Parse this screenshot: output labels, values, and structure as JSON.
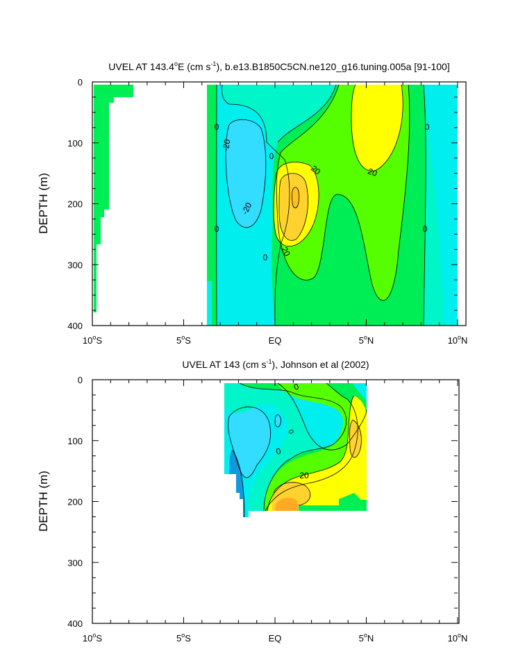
{
  "chart_data": [
    {
      "type": "contour",
      "title_prefix": "UVEL AT 143.4",
      "title_deg": "o",
      "title_mid": "E (cm s",
      "title_exp": "-1",
      "title_suffix": "), b.e13.B1850C5CN.ne120_g16.tuning.005a [91-100]",
      "ylabel": "DEPTH (m)",
      "xlim": [
        -10,
        10
      ],
      "ylim": [
        400,
        0
      ],
      "y_ticks": [
        "0",
        "100",
        "200",
        "300",
        "400"
      ],
      "x_ticks": [
        {
          "num": "10",
          "sup": "o",
          "suf": "S"
        },
        {
          "num": "5",
          "sup": "o",
          "suf": "S"
        },
        {
          "num": "EQ",
          "sup": "",
          "suf": ""
        },
        {
          "num": "5",
          "sup": "o",
          "suf": "N"
        },
        {
          "num": "10",
          "sup": "o",
          "suf": "N"
        }
      ],
      "contour_labels": [
        "0",
        "-20",
        "0",
        "20",
        "20",
        "-20",
        "0",
        "20",
        "0",
        "0",
        "0"
      ],
      "colors": {
        "cyan": "#00eeee",
        "lightblue": "#33ddff",
        "teal": "#00f5c8",
        "green": "#00ee55",
        "lime": "#55ff00",
        "yellow": "#ffff00",
        "gold": "#ffd22e"
      }
    },
    {
      "type": "contour",
      "title_prefix": "UVEL AT 143 (cm s",
      "title_exp": "-1",
      "title_suffix": "), Johnson et al (2002)",
      "ylabel": "DEPTH (m)",
      "xlim": [
        -10,
        10
      ],
      "ylim": [
        400,
        0
      ],
      "y_ticks": [
        "0",
        "100",
        "200",
        "300",
        "400"
      ],
      "x_ticks": [
        {
          "num": "10",
          "sup": "o",
          "suf": "S"
        },
        {
          "num": "5",
          "sup": "o",
          "suf": "S"
        },
        {
          "num": "EQ",
          "sup": "",
          "suf": ""
        },
        {
          "num": "5",
          "sup": "o",
          "suf": "N"
        },
        {
          "num": "10",
          "sup": "o",
          "suf": "N"
        }
      ],
      "contour_labels": [
        "0",
        "0",
        "20"
      ],
      "colors": {
        "blue": "#1199dd",
        "cyan": "#00eeee",
        "teal": "#00f5c8",
        "green": "#00ee55",
        "lime": "#55ff00",
        "yellow": "#ffff00",
        "gold": "#ffd22e",
        "orange": "#ffaa22"
      }
    }
  ]
}
